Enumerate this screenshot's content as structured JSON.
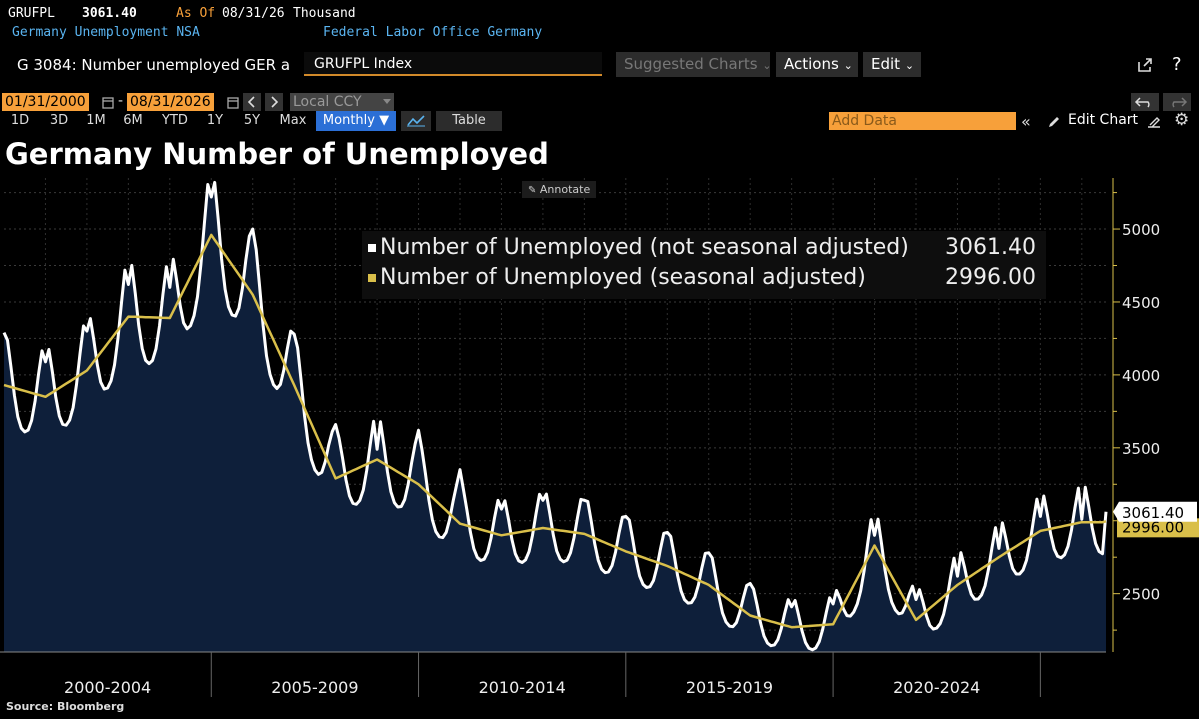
{
  "header": {
    "ticker": "GRUFPL",
    "last_value": "3061.40",
    "as_of_label": "As Of",
    "as_of_date": "08/31/26",
    "units": "Thousand",
    "description": "Germany Unemployment NSA",
    "source_org": "Federal Labor Office Germany"
  },
  "toolbar": {
    "function_label": "G 3084: Number unemployed GER a",
    "command_value": "GRUFPL Index",
    "suggested": "Suggested Charts",
    "actions": "Actions",
    "edit": "Edit",
    "chevron": "⌄"
  },
  "controls": {
    "start_date": "01/31/2000",
    "dash": "-",
    "end_date": "08/31/2026",
    "currency": "Local CCY",
    "periods": [
      "1D",
      "3D",
      "1M",
      "6M",
      "YTD",
      "1Y",
      "5Y",
      "Max"
    ],
    "frequency": "Monthly ▼",
    "table": "Table",
    "add_data_placeholder": "Add Data",
    "edit_chart": "Edit Chart"
  },
  "title": "Germany Number of Unemployed",
  "annotate": "Annotate",
  "source": "Source: Bloomberg",
  "colors": {
    "nsa": "#ffffff",
    "sa": "#d9bf4a",
    "area": "#0e1f3a",
    "accent": "#f7a03a"
  },
  "chart_data": {
    "type": "line",
    "xlabel": "",
    "ylabel": "",
    "ylim": [
      2100,
      5350
    ],
    "xlim": [
      "2000-01",
      "2026-08"
    ],
    "yticks": [
      2500,
      3000,
      3500,
      4000,
      4500,
      5000
    ],
    "x_period_labels": [
      "2000-2004",
      "2005-2009",
      "2010-2014",
      "2015-2019",
      "2020-2024"
    ],
    "grid": true,
    "legend_position": "top-center",
    "series": [
      {
        "name": "Number of Unemployed (not seasonal adjusted)",
        "legend_value": "3061.40",
        "yearly_jan_values": [
          4290,
          4090,
          4300,
          4620,
          4600,
          5220,
          5000,
          4280,
          3660,
          3490,
          3620,
          3350,
          3080,
          3140,
          3140,
          3030,
          2920,
          2780,
          2570,
          2410,
          2430,
          2900,
          2460,
          2620,
          2810,
          3030,
          3010
        ],
        "last_value": 3061.4
      },
      {
        "name": "Number of Unemployed (seasonal adjusted)",
        "legend_value": "2996.00",
        "yearly_values": [
          3930,
          3850,
          4030,
          4400,
          4390,
          4960,
          4550,
          3930,
          3290,
          3420,
          3250,
          2980,
          2900,
          2950,
          2910,
          2790,
          2690,
          2560,
          2350,
          2270,
          2290,
          2830,
          2320,
          2560,
          2750,
          2930,
          2990
        ],
        "last_value": 2996.0
      }
    ]
  }
}
